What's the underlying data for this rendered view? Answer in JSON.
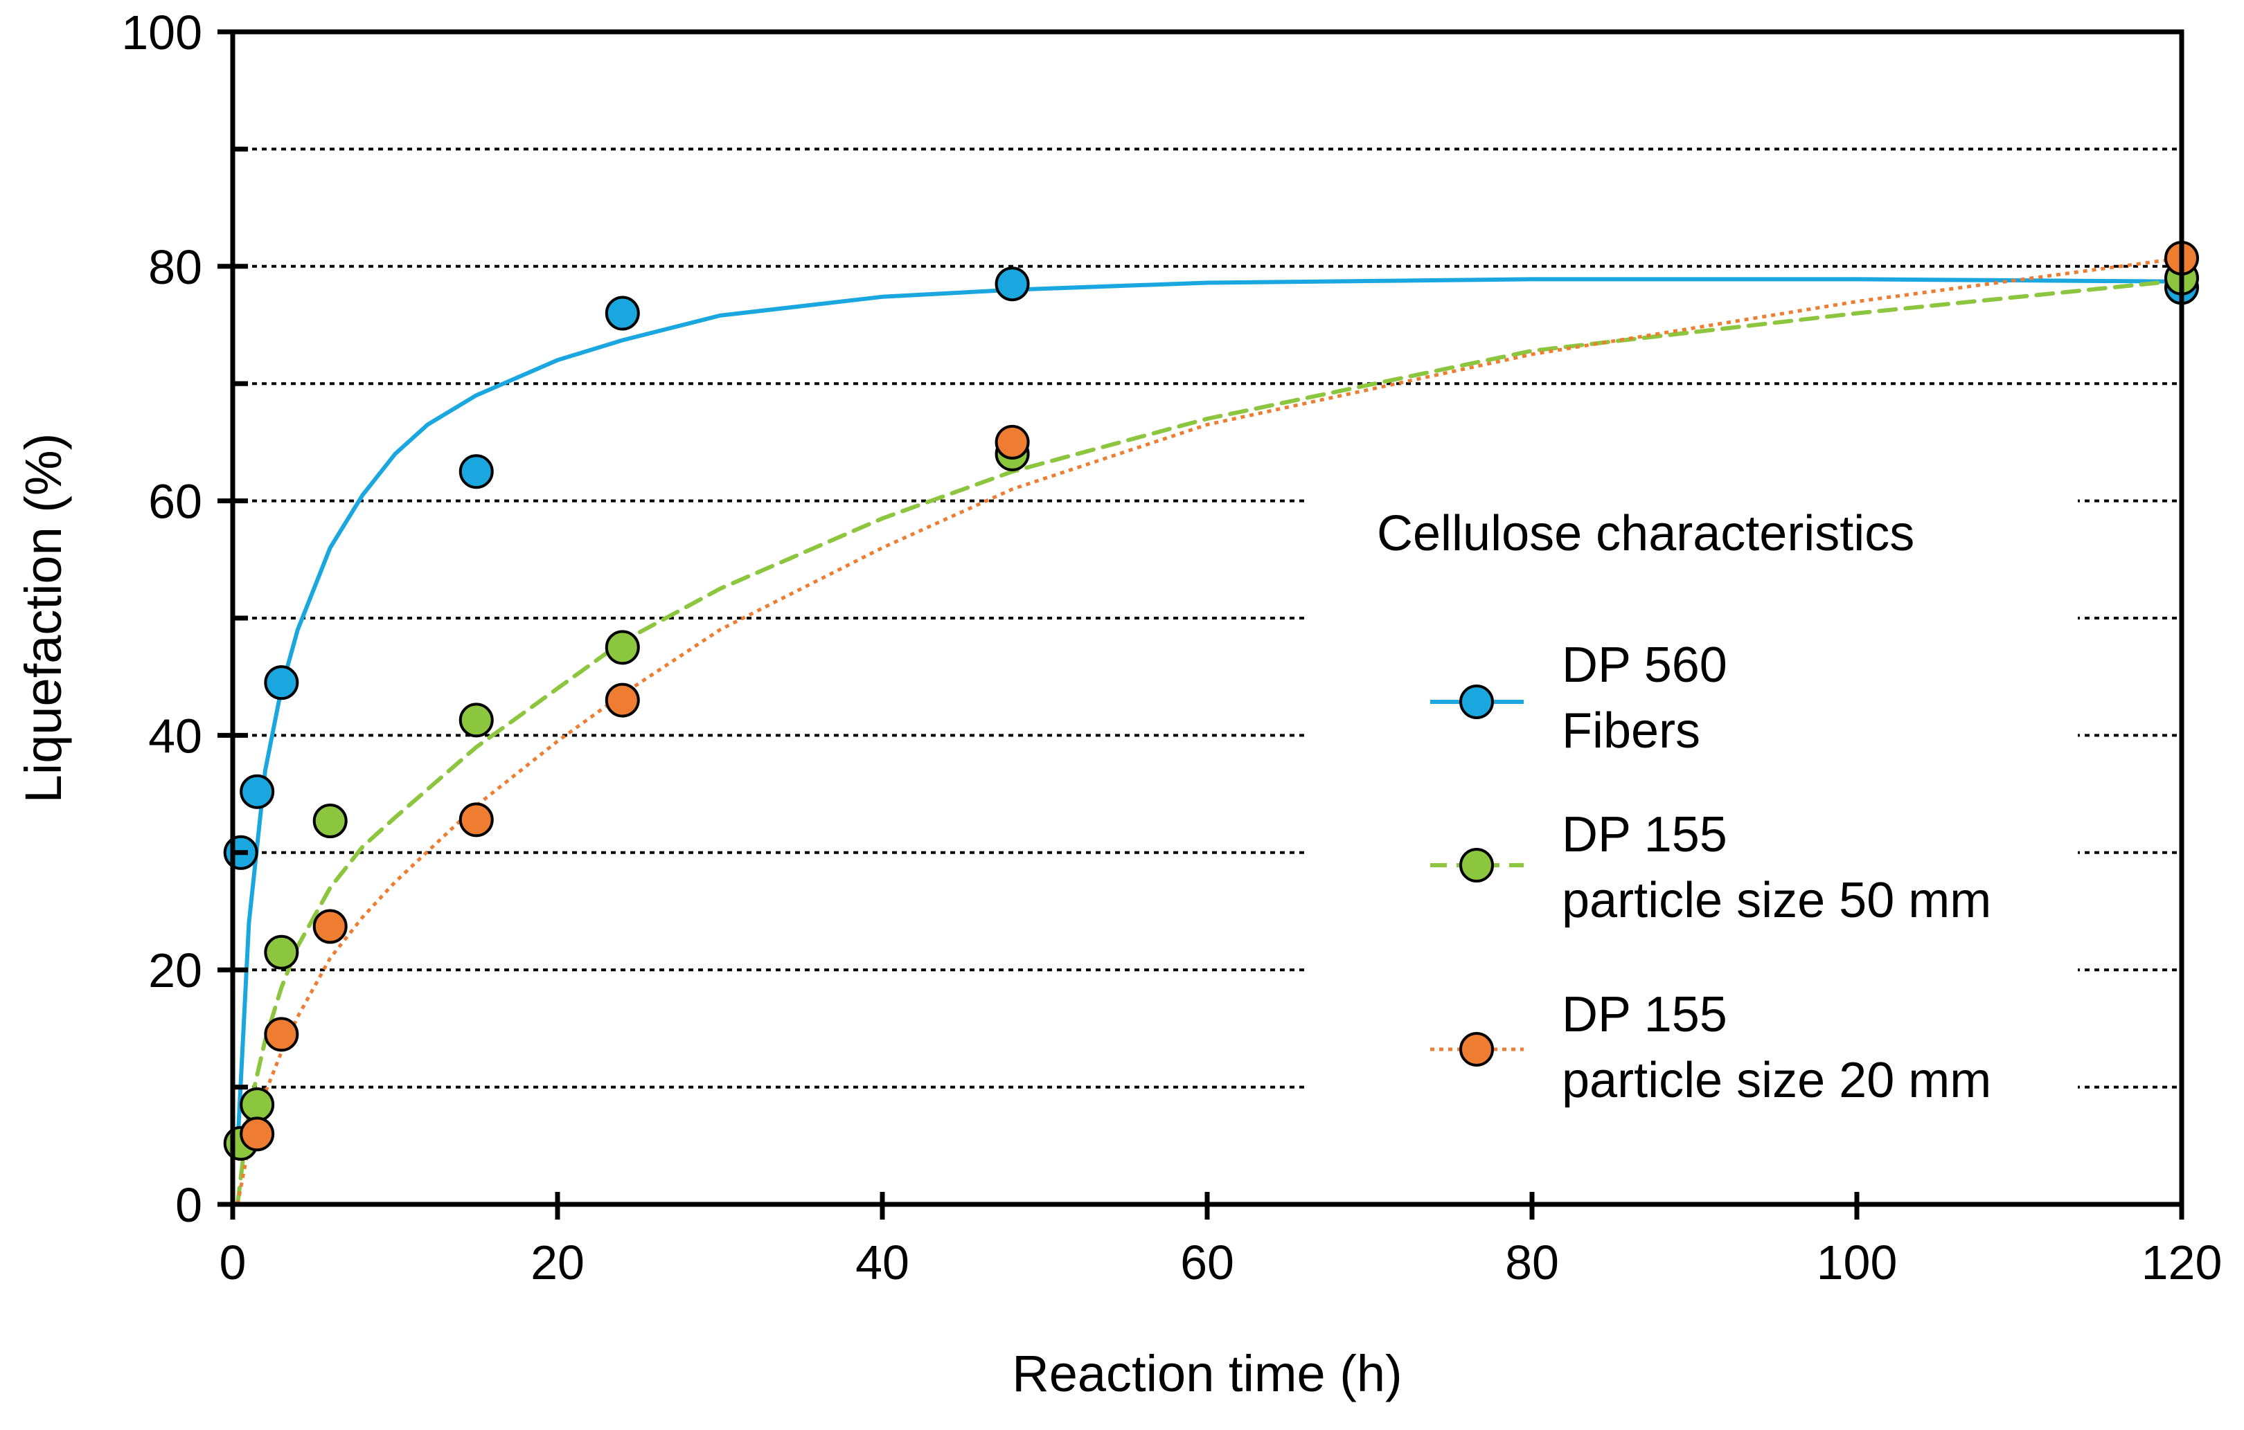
{
  "chart_data": {
    "type": "scatter",
    "title": "",
    "xlabel": "Reaction time (h)",
    "ylabel": "Liquefaction (%)",
    "xlim": [
      0,
      120
    ],
    "ylim": [
      0,
      100
    ],
    "xticks": [
      0,
      20,
      40,
      60,
      80,
      100,
      120
    ],
    "yticks": [
      0,
      20,
      40,
      60,
      80,
      100
    ],
    "ygrid": [
      10,
      20,
      30,
      40,
      50,
      60,
      70,
      80,
      90
    ],
    "legend": {
      "title": "Cellulose characteristics",
      "placement": "center-right"
    },
    "series": [
      {
        "name": "DP 560 Fibers",
        "label_lines": [
          "DP 560",
          "Fibers"
        ],
        "color": "#1aa7e0",
        "line_style": "solid",
        "points": [
          {
            "x": 0.5,
            "y": 30
          },
          {
            "x": 1.5,
            "y": 35.2
          },
          {
            "x": 3,
            "y": 44.5
          },
          {
            "x": 15,
            "y": 62.5
          },
          {
            "x": 24,
            "y": 76
          },
          {
            "x": 48,
            "y": 78.5
          },
          {
            "x": 120,
            "y": 78.2
          }
        ],
        "fit": {
          "x": [
            0.3,
            1,
            2,
            3,
            4,
            6,
            8,
            10,
            12,
            15,
            20,
            24,
            30,
            40,
            48,
            60,
            80,
            100,
            120
          ],
          "y": [
            5,
            24,
            37,
            44,
            49,
            56,
            60.5,
            64,
            66.5,
            69,
            72,
            73.7,
            75.8,
            77.4,
            78,
            78.6,
            78.9,
            78.9,
            78.7
          ]
        }
      },
      {
        "name": "DP 155 particle size 50 mm",
        "label_lines": [
          "DP 155",
          "particle size 50 mm"
        ],
        "color": "#8cc63f",
        "line_style": "dashed",
        "points": [
          {
            "x": 0.5,
            "y": 5.2
          },
          {
            "x": 1.5,
            "y": 8.5
          },
          {
            "x": 3,
            "y": 21.5
          },
          {
            "x": 6,
            "y": 32.7
          },
          {
            "x": 15,
            "y": 41.3
          },
          {
            "x": 24,
            "y": 47.5
          },
          {
            "x": 48,
            "y": 64
          },
          {
            "x": 120,
            "y": 79
          }
        ],
        "fit": {
          "x": [
            0.3,
            1,
            2,
            3,
            4,
            6,
            8,
            10,
            15,
            20,
            24,
            30,
            40,
            48,
            60,
            80,
            100,
            120
          ],
          "y": [
            0,
            8,
            14,
            18.5,
            22,
            27,
            30.5,
            33,
            39,
            44,
            48,
            52.5,
            58.5,
            62.5,
            67,
            72.8,
            76,
            78.8
          ]
        }
      },
      {
        "name": "DP 155 particle size 20 mm",
        "label_lines": [
          "DP 155",
          "particle size 20 mm"
        ],
        "color": "#ee7d31",
        "line_style": "dotted",
        "points": [
          {
            "x": 1.5,
            "y": 6
          },
          {
            "x": 3,
            "y": 14.5
          },
          {
            "x": 6,
            "y": 23.7
          },
          {
            "x": 15,
            "y": 32.8
          },
          {
            "x": 24,
            "y": 43
          },
          {
            "x": 48,
            "y": 65
          },
          {
            "x": 120,
            "y": 80.7
          }
        ],
        "fit": {
          "x": [
            0.3,
            1,
            2,
            3,
            4,
            6,
            8,
            10,
            15,
            20,
            24,
            30,
            40,
            48,
            60,
            80,
            100,
            120
          ],
          "y": [
            0,
            5,
            9.5,
            13,
            16,
            21,
            24.5,
            27.5,
            34,
            39.5,
            43.5,
            49,
            56,
            61,
            66.5,
            72.5,
            77,
            80.7
          ]
        }
      }
    ]
  }
}
